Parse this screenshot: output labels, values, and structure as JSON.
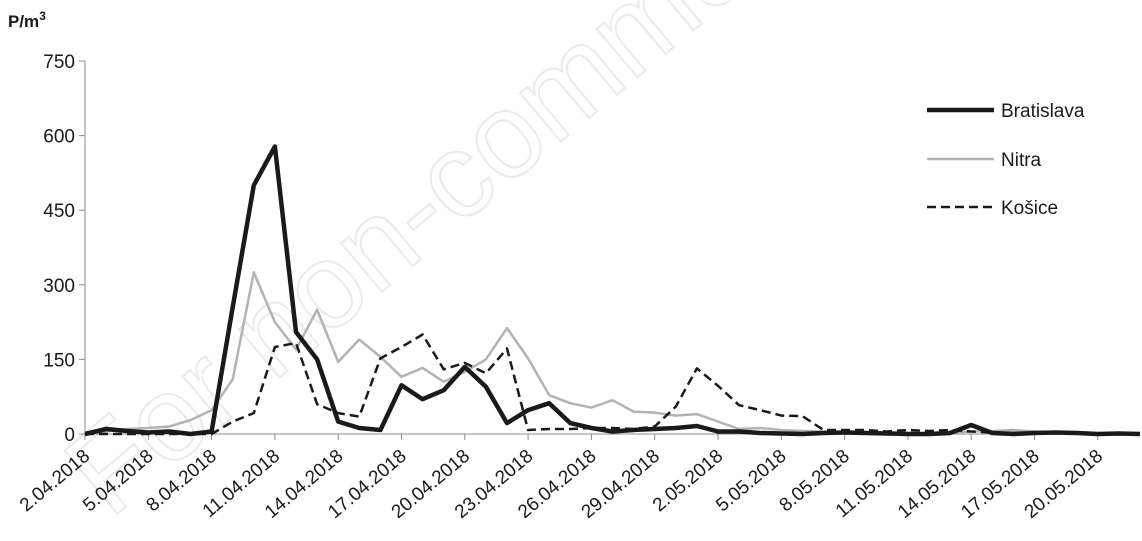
{
  "watermark": "For non-commercial use",
  "chart_data": {
    "type": "line",
    "ylabel": "P/m³",
    "ylim": [
      0,
      750
    ],
    "yticks": [
      0,
      150,
      300,
      450,
      600,
      750
    ],
    "x_tick_labels": [
      "2.04.2018",
      "5.04.2018",
      "8.04.2018",
      "11.04.2018",
      "14.04.2018",
      "17.04.2018",
      "20.04.2018",
      "23.04.2018",
      "26.04.2018",
      "29.04.2018",
      "2.05.2018",
      "5.05.2018",
      "8.05.2018",
      "11.05.2018",
      "14.05.2018",
      "17.05.2018",
      "20.05.2018"
    ],
    "x_start": "2018-04-02",
    "x_end": "2018-05-22",
    "legend_position": "top-right",
    "grid": false,
    "series": [
      {
        "name": "Bratislava",
        "style": "solid-bold",
        "color": "#1a1a1a",
        "points": [
          [
            "2018-04-02",
            0
          ],
          [
            "2018-04-03",
            10
          ],
          [
            "2018-04-04",
            6
          ],
          [
            "2018-04-05",
            3
          ],
          [
            "2018-04-06",
            5
          ],
          [
            "2018-04-07",
            0
          ],
          [
            "2018-04-08",
            5
          ],
          [
            "2018-04-09",
            255
          ],
          [
            "2018-04-10",
            500
          ],
          [
            "2018-04-11",
            578
          ],
          [
            "2018-04-12",
            205
          ],
          [
            "2018-04-13",
            150
          ],
          [
            "2018-04-14",
            25
          ],
          [
            "2018-04-15",
            12
          ],
          [
            "2018-04-16",
            8
          ],
          [
            "2018-04-17",
            98
          ],
          [
            "2018-04-18",
            70
          ],
          [
            "2018-04-19",
            88
          ],
          [
            "2018-04-20",
            135
          ],
          [
            "2018-04-21",
            95
          ],
          [
            "2018-04-22",
            22
          ],
          [
            "2018-04-23",
            48
          ],
          [
            "2018-04-24",
            62
          ],
          [
            "2018-04-25",
            22
          ],
          [
            "2018-04-26",
            12
          ],
          [
            "2018-04-27",
            5
          ],
          [
            "2018-04-28",
            8
          ],
          [
            "2018-04-29",
            10
          ],
          [
            "2018-04-30",
            12
          ],
          [
            "2018-05-01",
            16
          ],
          [
            "2018-05-02",
            5
          ],
          [
            "2018-05-03",
            5
          ],
          [
            "2018-05-04",
            2
          ],
          [
            "2018-05-05",
            1
          ],
          [
            "2018-05-06",
            0
          ],
          [
            "2018-05-07",
            2
          ],
          [
            "2018-05-08",
            3
          ],
          [
            "2018-05-09",
            2
          ],
          [
            "2018-05-10",
            1
          ],
          [
            "2018-05-11",
            0
          ],
          [
            "2018-05-12",
            0
          ],
          [
            "2018-05-13",
            2
          ],
          [
            "2018-05-14",
            18
          ],
          [
            "2018-05-15",
            2
          ],
          [
            "2018-05-16",
            0
          ],
          [
            "2018-05-17",
            2
          ],
          [
            "2018-05-18",
            3
          ],
          [
            "2018-05-19",
            2
          ],
          [
            "2018-05-20",
            0
          ],
          [
            "2018-05-21",
            1
          ],
          [
            "2018-05-22",
            0
          ]
        ]
      },
      {
        "name": "Nitra",
        "style": "solid-grey",
        "color": "#b3b3b3",
        "points": [
          [
            "2018-04-02",
            0
          ],
          [
            "2018-04-03",
            5
          ],
          [
            "2018-04-04",
            10
          ],
          [
            "2018-04-05",
            12
          ],
          [
            "2018-04-06",
            15
          ],
          [
            "2018-04-07",
            28
          ],
          [
            "2018-04-08",
            48
          ],
          [
            "2018-04-09",
            110
          ],
          [
            "2018-04-10",
            325
          ],
          [
            "2018-04-11",
            225
          ],
          [
            "2018-04-12",
            170
          ],
          [
            "2018-04-13",
            250
          ],
          [
            "2018-04-14",
            145
          ],
          [
            "2018-04-15",
            190
          ],
          [
            "2018-04-16",
            155
          ],
          [
            "2018-04-17",
            115
          ],
          [
            "2018-04-18",
            133
          ],
          [
            "2018-04-19",
            105
          ],
          [
            "2018-04-20",
            125
          ],
          [
            "2018-04-21",
            150
          ],
          [
            "2018-04-22",
            213
          ],
          [
            "2018-04-23",
            152
          ],
          [
            "2018-04-24",
            78
          ],
          [
            "2018-04-25",
            62
          ],
          [
            "2018-04-26",
            53
          ],
          [
            "2018-04-27",
            68
          ],
          [
            "2018-04-28",
            45
          ],
          [
            "2018-04-29",
            43
          ],
          [
            "2018-04-30",
            37
          ],
          [
            "2018-05-01",
            40
          ],
          [
            "2018-05-02",
            25
          ],
          [
            "2018-05-03",
            10
          ],
          [
            "2018-05-04",
            12
          ],
          [
            "2018-05-05",
            8
          ],
          [
            "2018-05-06",
            6
          ],
          [
            "2018-05-07",
            5
          ],
          [
            "2018-05-08",
            4
          ],
          [
            "2018-05-09",
            3
          ],
          [
            "2018-05-10",
            3
          ],
          [
            "2018-05-11",
            2
          ],
          [
            "2018-05-12",
            1
          ],
          [
            "2018-05-13",
            3
          ],
          [
            "2018-05-14",
            5
          ],
          [
            "2018-05-15",
            6
          ],
          [
            "2018-05-16",
            8
          ],
          [
            "2018-05-17",
            5
          ],
          [
            "2018-05-18",
            3
          ],
          [
            "2018-05-19",
            2
          ],
          [
            "2018-05-20",
            2
          ],
          [
            "2018-05-21",
            1
          ],
          [
            "2018-05-22",
            0
          ]
        ]
      },
      {
        "name": "Košice",
        "style": "dashed",
        "color": "#1a1a1a",
        "points": [
          [
            "2018-04-02",
            0
          ],
          [
            "2018-04-03",
            0
          ],
          [
            "2018-04-04",
            0
          ],
          [
            "2018-04-05",
            0
          ],
          [
            "2018-04-06",
            0
          ],
          [
            "2018-04-07",
            0
          ],
          [
            "2018-04-08",
            0
          ],
          [
            "2018-04-09",
            25
          ],
          [
            "2018-04-10",
            42
          ],
          [
            "2018-04-11",
            175
          ],
          [
            "2018-04-12",
            183
          ],
          [
            "2018-04-13",
            60
          ],
          [
            "2018-04-14",
            42
          ],
          [
            "2018-04-15",
            35
          ],
          [
            "2018-04-16",
            152
          ],
          [
            "2018-04-17",
            175
          ],
          [
            "2018-04-18",
            200
          ],
          [
            "2018-04-19",
            130
          ],
          [
            "2018-04-20",
            143
          ],
          [
            "2018-04-21",
            122
          ],
          [
            "2018-04-22",
            172
          ],
          [
            "2018-04-23",
            8
          ],
          [
            "2018-04-24",
            10
          ],
          [
            "2018-04-25",
            10
          ],
          [
            "2018-04-26",
            12
          ],
          [
            "2018-04-27",
            12
          ],
          [
            "2018-04-28",
            10
          ],
          [
            "2018-04-29",
            15
          ],
          [
            "2018-04-30",
            55
          ],
          [
            "2018-05-01",
            132
          ],
          [
            "2018-05-02",
            97
          ],
          [
            "2018-05-03",
            58
          ],
          [
            "2018-05-04",
            48
          ],
          [
            "2018-05-05",
            37
          ],
          [
            "2018-05-06",
            36
          ],
          [
            "2018-05-07",
            8
          ],
          [
            "2018-05-08",
            8
          ],
          [
            "2018-05-09",
            8
          ],
          [
            "2018-05-10",
            5
          ],
          [
            "2018-05-11",
            8
          ],
          [
            "2018-05-12",
            6
          ],
          [
            "2018-05-13",
            8
          ],
          [
            "2018-05-14",
            5
          ],
          [
            "2018-05-15",
            3
          ],
          [
            "2018-05-16",
            2
          ],
          [
            "2018-05-17",
            3
          ],
          [
            "2018-05-18",
            2
          ],
          [
            "2018-05-19",
            2
          ],
          [
            "2018-05-20",
            1
          ],
          [
            "2018-05-21",
            1
          ],
          [
            "2018-05-22",
            0
          ]
        ]
      }
    ]
  }
}
